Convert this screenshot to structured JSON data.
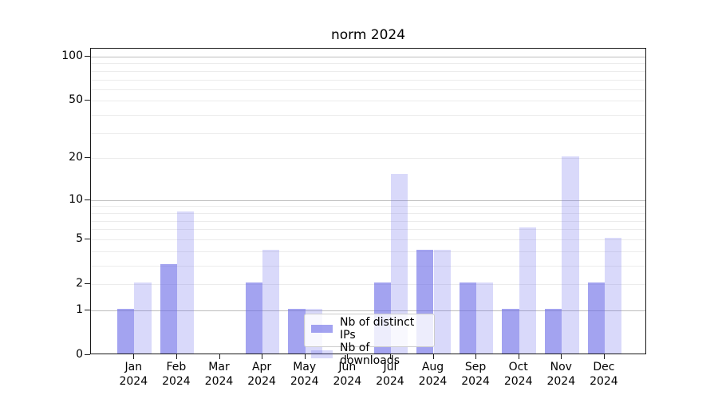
{
  "chart_data": {
    "type": "bar",
    "title": "norm 2024",
    "categories": [
      "Jan 2024",
      "Feb 2024",
      "Mar 2024",
      "Apr 2024",
      "May 2024",
      "Jun 2024",
      "Jul 2024",
      "Aug 2024",
      "Sep 2024",
      "Oct 2024",
      "Nov 2024",
      "Dec 2024"
    ],
    "series": [
      {
        "name": "Nb of distinct IPs",
        "color": "rgba(102,102,230,0.60)",
        "color_hex_on_white": "#a4a4f0",
        "values": [
          1,
          3,
          0,
          2,
          1,
          0,
          2,
          4,
          2,
          1,
          1,
          2
        ]
      },
      {
        "name": "Nb of downloads",
        "color": "rgba(102,102,235,0.25)",
        "color_hex_on_white": "#d9d9fa",
        "values": [
          2,
          8,
          0,
          4,
          1,
          0,
          15,
          4,
          2,
          6,
          20,
          5
        ]
      }
    ],
    "xlabel": "",
    "ylabel": "",
    "yscale": "log1p",
    "ylim": [
      0,
      113
    ],
    "yticks": [
      0,
      1,
      2,
      5,
      10,
      20,
      50,
      100
    ],
    "major_gridline_values": [
      1,
      10,
      100
    ],
    "minor_gridline_values": [
      2,
      3,
      4,
      5,
      6,
      7,
      8,
      9,
      20,
      30,
      40,
      50,
      60,
      70,
      80,
      90
    ],
    "grid": true,
    "legend_position": "lower center"
  }
}
